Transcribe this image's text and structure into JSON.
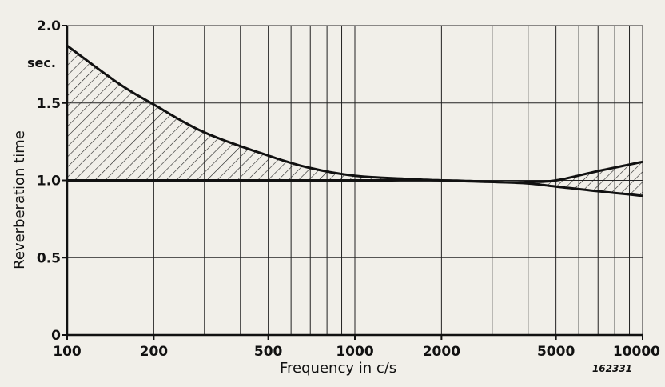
{
  "chart_data": {
    "type": "area",
    "title": "",
    "xlabel": "Frequency in c/s",
    "ylabel": "Reverberation time",
    "yunit": "sec.",
    "x_scale": "log",
    "xlim": [
      100,
      10000
    ],
    "ylim": [
      0,
      2.0
    ],
    "x_ticks": [
      100,
      200,
      500,
      1000,
      2000,
      5000,
      10000
    ],
    "x_tick_labels": [
      "100",
      "200",
      "500",
      "1000",
      "2000",
      "5000",
      "10000"
    ],
    "y_ticks": [
      0,
      0.5,
      1.0,
      1.5,
      2.0
    ],
    "y_tick_labels": [
      "0",
      "0.5",
      "1.0",
      "1.5",
      "2.0"
    ],
    "grid": true,
    "figure_number": "162331",
    "series": [
      {
        "x": [
          100,
          150,
          200,
          300,
          500,
          700,
          1000,
          1500,
          2000,
          3000,
          4000,
          5000,
          7000,
          10000
        ],
        "values": [
          1.87,
          1.63,
          1.49,
          1.31,
          1.16,
          1.08,
          1.03,
          1.01,
          1.0,
          0.99,
          0.99,
          1.0,
          1.06,
          1.12
        ]
      },
      {
        "x": [
          100,
          1000,
          2000,
          3000,
          4000,
          5000,
          7000,
          10000
        ],
        "values": [
          1.0,
          1.0,
          1.0,
          0.99,
          0.98,
          0.96,
          0.93,
          0.9
        ]
      }
    ]
  }
}
